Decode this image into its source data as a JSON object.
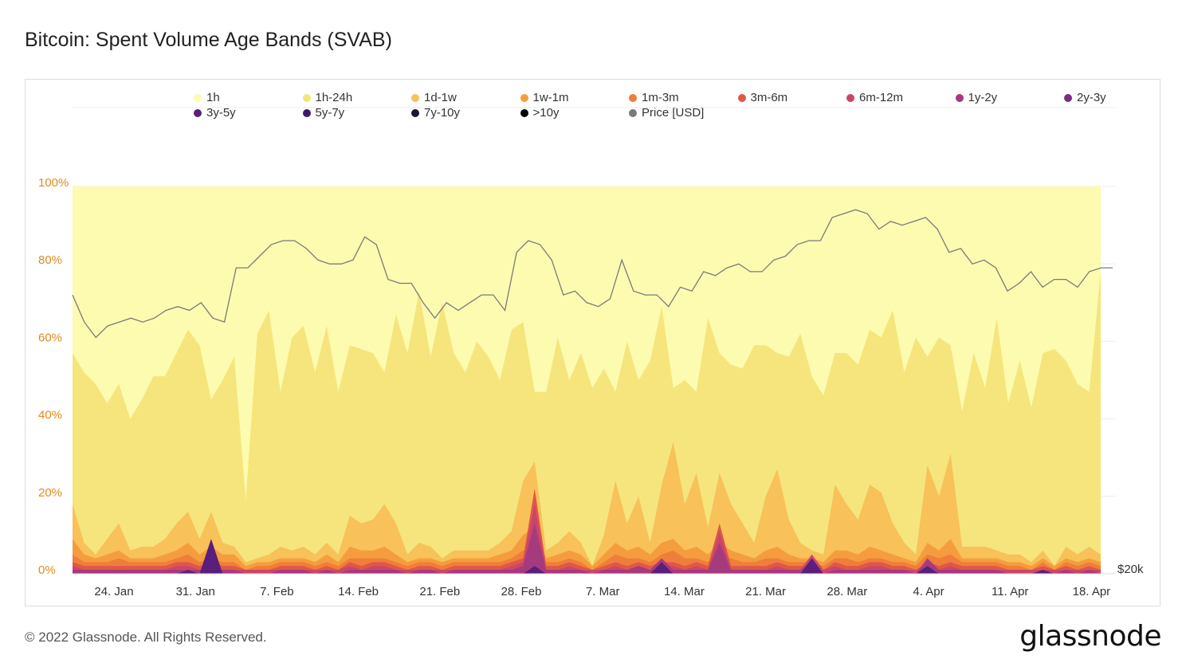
{
  "title": "Bitcoin: Spent Volume Age Bands (SVAB)",
  "footer": "© 2022 Glassnode. All Rights Reserved.",
  "logo": "glassnode",
  "watermark": "glassnode",
  "chart_data": {
    "type": "area",
    "stacked_percent": true,
    "x_ticks": [
      "24. Jan",
      "31. Jan",
      "7. Feb",
      "14. Feb",
      "21. Feb",
      "28. Feb",
      "7. Mar",
      "14. Mar",
      "21. Mar",
      "28. Mar",
      "4. Apr",
      "11. Apr",
      "18. Apr"
    ],
    "y_ticks": [
      "0%",
      "20%",
      "40%",
      "60%",
      "80%",
      "100%"
    ],
    "ylim": [
      0,
      100
    ],
    "y2_ticks": [
      "$20k"
    ],
    "legend_position": "top",
    "series": [
      {
        "name": "1h",
        "color": "#fcfbb0"
      },
      {
        "name": "1h-24h",
        "color": "#f5e57c"
      },
      {
        "name": "1d-1w",
        "color": "#f8c15a"
      },
      {
        "name": "1w-1m",
        "color": "#f59d3e"
      },
      {
        "name": "1m-3m",
        "color": "#ef7e3a"
      },
      {
        "name": "3m-6m",
        "color": "#e0574a"
      },
      {
        "name": "6m-12m",
        "color": "#c9466a"
      },
      {
        "name": "1y-2y",
        "color": "#a63a7e"
      },
      {
        "name": "2y-3y",
        "color": "#7d2c84"
      },
      {
        "name": "3y-5y",
        "color": "#5a1f7a"
      },
      {
        "name": "5y-7y",
        "color": "#3c1a66"
      },
      {
        "name": "7y-10y",
        "color": "#1c1636"
      },
      {
        "name": ">10y",
        "color": "#050505"
      },
      {
        "name": "Price [USD]",
        "color": "#7a7a7a"
      }
    ],
    "bands_top_pct": {
      "1h-24h": [
        57,
        52,
        49,
        44,
        49,
        40,
        45,
        51,
        51,
        57,
        63,
        59,
        45,
        50,
        56,
        19,
        62,
        68,
        47,
        61,
        64,
        52,
        64,
        47,
        59,
        58,
        57,
        52,
        67,
        57,
        73,
        56,
        70,
        57,
        52,
        60,
        56,
        50,
        63,
        65,
        47,
        47,
        61,
        50,
        57,
        48,
        53,
        47,
        60,
        50,
        55,
        69,
        48,
        50,
        47,
        66,
        57,
        54,
        53,
        59,
        59,
        57,
        56,
        62,
        51,
        46,
        57,
        57,
        54,
        63,
        61,
        68,
        52,
        61,
        56,
        61,
        59,
        42,
        57,
        48,
        66,
        44,
        55,
        43,
        57,
        58,
        55,
        49,
        47,
        78
      ],
      "1d-1w": [
        18,
        8,
        5,
        9,
        13,
        6,
        7,
        7,
        9,
        13,
        16,
        9,
        16,
        8,
        7,
        3,
        4,
        5,
        7,
        6,
        7,
        5,
        8,
        5,
        15,
        13,
        14,
        18,
        13,
        5,
        8,
        7,
        4,
        6,
        6,
        6,
        6,
        8,
        11,
        24,
        29,
        6,
        8,
        11,
        8,
        2,
        10,
        24,
        13,
        20,
        8,
        23,
        34,
        18,
        26,
        12,
        26,
        18,
        13,
        8,
        20,
        27,
        14,
        8,
        6,
        5,
        23,
        18,
        14,
        23,
        21,
        13,
        8,
        5,
        28,
        20,
        31,
        7,
        7,
        7,
        6,
        5,
        5,
        3,
        6,
        2,
        7,
        5,
        7,
        5
      ],
      "1w-1m": [
        9,
        5,
        4,
        5,
        6,
        4,
        4,
        4,
        5,
        6,
        8,
        5,
        7,
        5,
        5,
        2,
        3,
        3,
        4,
        4,
        4,
        3,
        5,
        3,
        7,
        6,
        6,
        7,
        5,
        3,
        4,
        4,
        3,
        4,
        4,
        4,
        4,
        5,
        6,
        10,
        12,
        4,
        5,
        6,
        5,
        2,
        5,
        8,
        6,
        7,
        5,
        8,
        9,
        6,
        7,
        5,
        8,
        6,
        5,
        4,
        6,
        7,
        5,
        4,
        4,
        3,
        6,
        6,
        5,
        7,
        6,
        5,
        4,
        3,
        8,
        6,
        9,
        4,
        4,
        4,
        4,
        3,
        3,
        2,
        4,
        2,
        4,
        3,
        4,
        3
      ],
      "1m-3m": [
        5,
        3,
        3,
        3,
        4,
        3,
        3,
        3,
        3,
        4,
        5,
        3,
        4,
        3,
        3,
        1,
        2,
        2,
        3,
        3,
        3,
        2,
        3,
        2,
        4,
        4,
        4,
        4,
        3,
        2,
        3,
        3,
        2,
        3,
        3,
        3,
        3,
        3,
        4,
        6,
        7,
        3,
        3,
        4,
        3,
        1,
        3,
        5,
        4,
        4,
        3,
        5,
        6,
        4,
        4,
        3,
        5,
        4,
        3,
        3,
        4,
        4,
        3,
        3,
        3,
        2,
        4,
        4,
        3,
        4,
        4,
        3,
        3,
        2,
        5,
        4,
        5,
        3,
        3,
        3,
        3,
        2,
        2,
        1,
        3,
        1,
        3,
        2,
        3,
        2
      ],
      "3m-6m": [
        3,
        2,
        2,
        2,
        2,
        2,
        2,
        2,
        2,
        3,
        3,
        2,
        3,
        2,
        2,
        1,
        1,
        1,
        2,
        2,
        2,
        1,
        2,
        1,
        3,
        2,
        3,
        3,
        2,
        1,
        2,
        2,
        1,
        2,
        2,
        2,
        2,
        2,
        3,
        4,
        22,
        2,
        2,
        3,
        2,
        1,
        2,
        3,
        2,
        3,
        2,
        3,
        3,
        2,
        3,
        2,
        13,
        2,
        2,
        2,
        2,
        3,
        2,
        2,
        2,
        1,
        3,
        2,
        2,
        3,
        3,
        2,
        2,
        1,
        3,
        2,
        3,
        2,
        2,
        2,
        2,
        1,
        1,
        1,
        2,
        1,
        2,
        1,
        2,
        1
      ],
      "6m-12m": [
        2,
        1,
        1,
        1,
        1,
        1,
        1,
        1,
        1,
        2,
        2,
        1,
        2,
        1,
        1,
        1,
        1,
        1,
        1,
        1,
        1,
        1,
        1,
        1,
        2,
        1,
        2,
        2,
        1,
        1,
        1,
        1,
        1,
        1,
        1,
        1,
        1,
        1,
        2,
        3,
        18,
        1,
        1,
        2,
        1,
        1,
        1,
        2,
        1,
        2,
        1,
        2,
        2,
        1,
        2,
        1,
        11,
        1,
        1,
        1,
        1,
        2,
        1,
        1,
        5,
        1,
        2,
        1,
        1,
        2,
        2,
        1,
        1,
        1,
        2,
        1,
        2,
        1,
        1,
        1,
        1,
        1,
        1,
        1,
        1,
        1,
        1,
        1,
        1,
        1
      ],
      "1y-2y": [
        1,
        1,
        1,
        1,
        1,
        1,
        1,
        1,
        1,
        1,
        1,
        1,
        1,
        1,
        1,
        0,
        0,
        0,
        1,
        1,
        1,
        0,
        1,
        0,
        1,
        1,
        1,
        1,
        1,
        0,
        1,
        1,
        0,
        1,
        1,
        1,
        1,
        1,
        1,
        2,
        13,
        1,
        1,
        1,
        1,
        0,
        1,
        1,
        1,
        2,
        1,
        4,
        1,
        1,
        1,
        1,
        8,
        1,
        1,
        1,
        1,
        1,
        1,
        1,
        3,
        0,
        1,
        1,
        1,
        1,
        1,
        1,
        1,
        0,
        4,
        1,
        1,
        1,
        1,
        1,
        1,
        0,
        0,
        0,
        1,
        0,
        1,
        0,
        1,
        0
      ],
      "3y-5y": [
        0,
        0,
        0,
        0,
        0,
        0,
        0,
        0,
        0,
        0,
        1,
        0,
        9,
        0,
        0,
        0,
        0,
        0,
        0,
        0,
        0,
        0,
        0,
        0,
        0,
        0,
        0,
        0,
        0,
        0,
        0,
        0,
        0,
        0,
        0,
        0,
        0,
        0,
        0,
        0,
        2,
        0,
        0,
        0,
        0,
        0,
        0,
        0,
        0,
        0,
        0,
        3,
        0,
        0,
        0,
        0,
        0,
        0,
        0,
        0,
        0,
        0,
        0,
        0,
        4,
        0,
        0,
        0,
        0,
        0,
        0,
        0,
        0,
        0,
        2,
        0,
        0,
        0,
        0,
        0,
        0,
        0,
        0,
        0,
        1,
        0,
        0,
        0,
        0,
        0
      ]
    },
    "price_usd_relative": [
      72,
      65,
      61,
      64,
      65,
      66,
      65,
      66,
      68,
      69,
      68,
      70,
      66,
      65,
      79,
      79,
      82,
      85,
      86,
      86,
      84,
      81,
      80,
      80,
      81,
      87,
      85,
      76,
      75,
      75,
      70,
      66,
      70,
      68,
      70,
      72,
      72,
      68,
      83,
      86,
      85,
      81,
      72,
      73,
      70,
      69,
      71,
      81,
      73,
      72,
      72,
      69,
      74,
      73,
      78,
      77,
      79,
      80,
      78,
      78,
      81,
      82,
      85,
      86,
      86,
      92,
      93,
      94,
      93,
      89,
      91,
      90,
      91,
      92,
      89,
      83,
      84,
      80,
      81,
      79,
      73,
      75,
      78,
      74,
      76,
      76,
      74,
      78,
      79,
      79
    ]
  }
}
